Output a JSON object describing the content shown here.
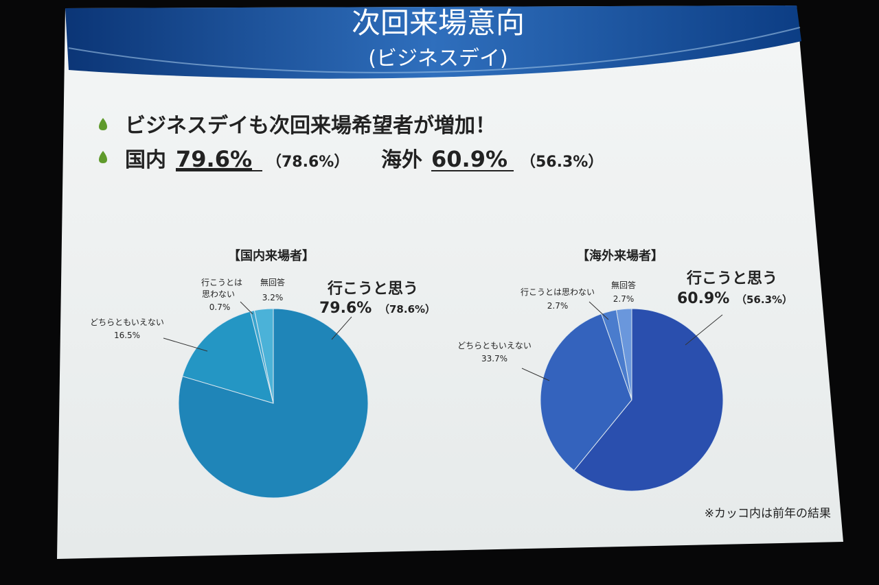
{
  "slide": {
    "title": "次回来場意向",
    "subtitle": "(ビジネスデイ)",
    "bullet1": "ビジネスデイも次回来場希望者が増加！",
    "bullet2": {
      "domestic_label": "国内",
      "domestic_value": "79.6%",
      "domestic_prev": "（78.6%）",
      "overseas_label": "海外",
      "overseas_value": "60.9%",
      "overseas_prev": "（56.3%）"
    },
    "footnote": "※カッコ内は前年の結果"
  },
  "chart_data": [
    {
      "type": "pie",
      "title": "【国内来場者】",
      "slices": [
        {
          "label": "行こうと思う",
          "value": 79.6,
          "value_text": "79.6%",
          "previous_text": "（78.6%）",
          "color": "#1f85b8"
        },
        {
          "label": "どちらともいえない",
          "value": 16.5,
          "value_text": "16.5%",
          "color": "#2496c4"
        },
        {
          "label": "行こうとは 思わない",
          "value": 0.7,
          "value_text": "0.7%",
          "color": "#3ba5cf"
        },
        {
          "label": "無回答",
          "value": 3.2,
          "value_text": "3.2%",
          "color": "#4bb2d8"
        }
      ]
    },
    {
      "type": "pie",
      "title": "【海外来場者】",
      "slices": [
        {
          "label": "行こうと思う",
          "value": 60.9,
          "value_text": "60.9%",
          "previous_text": "（56.3%）",
          "color": "#2a4fae"
        },
        {
          "label": "どちらともいえない",
          "value": 33.7,
          "value_text": "33.7%",
          "color": "#3463bd"
        },
        {
          "label": "行こうとは思わない",
          "value": 2.7,
          "value_text": "2.7%",
          "color": "#4a7ccd"
        },
        {
          "label": "無回答",
          "value": 2.7,
          "value_text": "2.7%",
          "color": "#6a97dc"
        }
      ]
    }
  ],
  "colors": {
    "header_dark": "#0e3f86",
    "header_light": "#3f7fc8",
    "slide_bg": "#f2f4f4",
    "bullet_icon": "#5f9a2b"
  }
}
